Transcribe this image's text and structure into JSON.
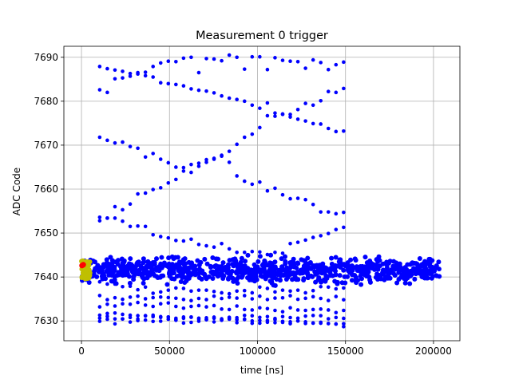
{
  "chart_data": {
    "type": "scatter",
    "title": "Measurement 0 trigger",
    "xlabel": "time [ns]",
    "ylabel": "ADC Code",
    "xlim": [
      -10000,
      215000
    ],
    "ylim": [
      7625.5,
      7692.5
    ],
    "xticks": [
      0,
      50000,
      100000,
      150000,
      200000
    ],
    "xtick_labels": [
      "0",
      "50000",
      "100000",
      "150000",
      "200000"
    ],
    "yticks": [
      7630,
      7640,
      7650,
      7660,
      7670,
      7680,
      7690
    ],
    "ytick_labels": [
      "7630",
      "7640",
      "7650",
      "7660",
      "7670",
      "7680",
      "7690"
    ],
    "grid": true,
    "legend": "none",
    "series": [
      {
        "color": "#0000ff",
        "marker": "circle",
        "x_range": [
          0,
          204000
        ],
        "dense_band": {
          "x_start": 0,
          "x_end": 204000,
          "y_center": 7641.5,
          "y_spread": 2.5
        },
        "band_x_end": 150000,
        "x": [
          10350,
          14680,
          19020,
          23350,
          27680,
          32010,
          36340,
          40670,
          45000,
          49330,
          53660,
          57990,
          62320,
          66650,
          70980,
          75310,
          79640,
          83970,
          88300,
          92640,
          96970,
          101300,
          105630,
          109960,
          114290,
          118620,
          122950,
          127280,
          131610,
          135940,
          140270,
          144600,
          148930
        ],
        "bands": [
          [
            7687.9,
            7687.4,
            7687.1,
            7686.8,
            7686.3,
            7686.2,
            7686.6,
            7687.9,
            7688.7,
            7689.1,
            7689.0,
            7689.8,
            7690.0,
            7686.5,
            7689.7,
            7689.6,
            7689.2,
            7690.5,
            7690.0,
            7687.3,
            7690.1,
            7690.1,
            7687.2,
            7689.9,
            7689.3,
            7689.1,
            7689.0,
            7687.5,
            7689.4,
            7688.8,
            7687.2,
            7688.3,
            7688.9
          ],
          [
            7682.6,
            7682.0,
            7685.1,
            7685.3,
            7685.7,
            7686.5,
            7685.8,
            7685.5,
            7684.2,
            7684.0,
            7683.8,
            7683.5,
            7682.8,
            7682.5,
            7682.3,
            7681.9,
            7681.2,
            7680.7,
            7680.4,
            7680.0,
            7679.1,
            7678.4,
            7679.6,
            7677.3,
            7677.1,
            7677.0,
            7678.1,
            7679.5,
            7679.1,
            7680.1,
            7682.2,
            7682.0,
            7682.9
          ],
          [
            7671.8,
            7671.1,
            7670.5,
            7670.7,
            7669.7,
            7669.3,
            7667.3,
            7668.1,
            7666.8,
            7666.0,
            7665.0,
            7664.1,
            7663.8,
            7665.2,
            7666.7,
            7667.0,
            7667.7,
            7668.6,
            7670.2,
            7671.8,
            7672.5,
            7674.0,
            7676.7,
            7676.6,
            7677.0,
            7676.4,
            7675.9,
            7675.5,
            7674.9,
            7674.8,
            7673.8,
            7673.1,
            7673.2
          ],
          [
            7653.6,
            7653.4,
            7656.0,
            7655.3,
            7656.6,
            7658.9,
            7659.1,
            7659.9,
            7660.3,
            7661.4,
            7662.2,
            7664.9,
            7665.6,
            7665.9,
            7666.1,
            7666.8,
            7667.5,
            7666.1,
            7663.0,
            7661.8,
            7661.1,
            7661.6,
            7659.6,
            7660.2,
            7658.7,
            7657.8,
            7657.9,
            7657.6,
            7656.5,
            7654.8,
            7654.8,
            7654.4,
            7654.7
          ],
          [
            7652.8,
            7653.4,
            7653.4,
            7652.7,
            7651.5,
            7651.6,
            7651.5,
            7649.6,
            7649.2,
            7648.9,
            7648.3,
            7648.2,
            7648.6,
            7647.4,
            7647.1,
            7646.8,
            7647.6,
            7646.4,
            7645.6,
            7645.6,
            7645.8,
            7645.7,
            7645.1,
            7645.6,
            7645.4,
            7647.6,
            7647.9,
            7648.4,
            7649.0,
            7649.4,
            7649.9,
            7650.8,
            7651.3
          ],
          [
            7638.9,
            7638.4,
            7638.4,
            7637.8,
            7637.9,
            7637.1,
            7637.7,
            7636.3,
            7636.6,
            7637.0,
            7637.5,
            7637.4,
            7636.8,
            7637.0,
            7637.0,
            7636.7,
            7636.4,
            7636.2,
            7636.8,
            7636.9,
            7636.4,
            7637.7,
            7637.4,
            7636.6,
            7637.0,
            7636.8,
            7637.0,
            7636.4,
            7636.9,
            7637.8,
            7637.7,
            7637.3,
            7637.5
          ],
          [
            7633.2,
            7633.8,
            7633.4,
            7633.9,
            7633.8,
            7634.2,
            7633.6,
            7633.3,
            7633.9,
            7634.1,
            7633.3,
            7632.9,
            7633.3,
            7633.5,
            7633.2,
            7633.5,
            7632.7,
            7632.6,
            7633.4,
            7632.6,
            7632.5,
            7633.0,
            7632.8,
            7632.4,
            7632.1,
            7633.0,
            7632.5,
            7632.4,
            7632.6,
            7632.7,
            7632.5,
            7631.9,
            7632.4
          ],
          [
            7631.3,
            7631.7,
            7631.8,
            7631.5,
            7631.3,
            7631.2,
            7631.2,
            7631.3,
            7630.8,
            7630.9,
            7630.6,
            7630.6,
            7630.9,
            7630.4,
            7630.7,
            7630.6,
            7630.3,
            7630.6,
            7630.3,
            7630.4,
            7630.0,
            7630.1,
            7629.7,
            7629.6,
            7629.9,
            7629.8,
            7630.0,
            7629.8,
            7629.5,
            7629.7,
            7629.4,
            7629.3,
            7628.7
          ]
        ]
      },
      {
        "color": "#bfbf00",
        "marker": "circle",
        "cluster": {
          "x_range": [
            0,
            5000
          ],
          "y_range": [
            7639.5,
            7643.8
          ]
        }
      },
      {
        "color": "#ff0000",
        "marker": "circle",
        "x": [
          300,
          1000
        ],
        "y": [
          7642.6,
          7642.8
        ]
      }
    ]
  }
}
